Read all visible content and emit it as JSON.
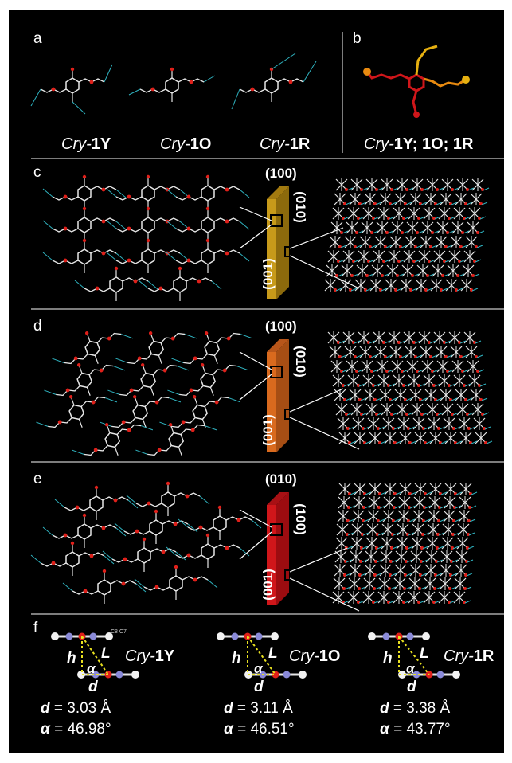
{
  "panels": {
    "a": {
      "label": "a",
      "captions": [
        {
          "prefix": "Cry-",
          "bold": "1Y"
        },
        {
          "prefix": "Cry-",
          "bold": "1O"
        },
        {
          "prefix": "Cry-",
          "bold": "1R"
        }
      ]
    },
    "b": {
      "label": "b",
      "caption": {
        "prefix": "Cry-",
        "bold": "1Y; 1O; 1R"
      }
    },
    "c": {
      "label": "c",
      "face_top": "(100)",
      "face_side": "(010)",
      "face_front": "(001)",
      "crystal_color": "#c79a1a"
    },
    "d": {
      "label": "d",
      "face_top": "(100)",
      "face_side": "(010)",
      "face_front": "(001)",
      "crystal_color": "#d96a1e"
    },
    "e": {
      "label": "e",
      "face_top": "(010)",
      "face_side": "(100)",
      "face_front": "(001)",
      "crystal_color": "#d0161a"
    },
    "f": {
      "label": "f",
      "items": [
        {
          "prefix": "Cry-",
          "bold": "1Y",
          "h": "h",
          "L": "L",
          "alpha": "α",
          "d": "d",
          "d_value": "= 3.03 Å",
          "a_value": "= 46.98°",
          "atom_labels": "C8 C7"
        },
        {
          "prefix": "Cry-",
          "bold": "1O",
          "h": "h",
          "L": "L",
          "alpha": "α",
          "d": "d",
          "d_value": "= 3.11 Å",
          "a_value": "= 46.51°"
        },
        {
          "prefix": "Cry-",
          "bold": "1R",
          "h": "h",
          "L": "L",
          "alpha": "α",
          "d": "d",
          "d_value": "= 3.38 Å",
          "a_value": "= 43.77°"
        }
      ],
      "stat_d_symbol": "d",
      "stat_a_symbol": "α"
    }
  },
  "colors": {
    "background": "#000000",
    "bond_white": "#e6e6e6",
    "hbond_cyan": "#2fb3c0",
    "oxygen_red": "#e0201a",
    "dashed_yellow": "#e8e020"
  }
}
